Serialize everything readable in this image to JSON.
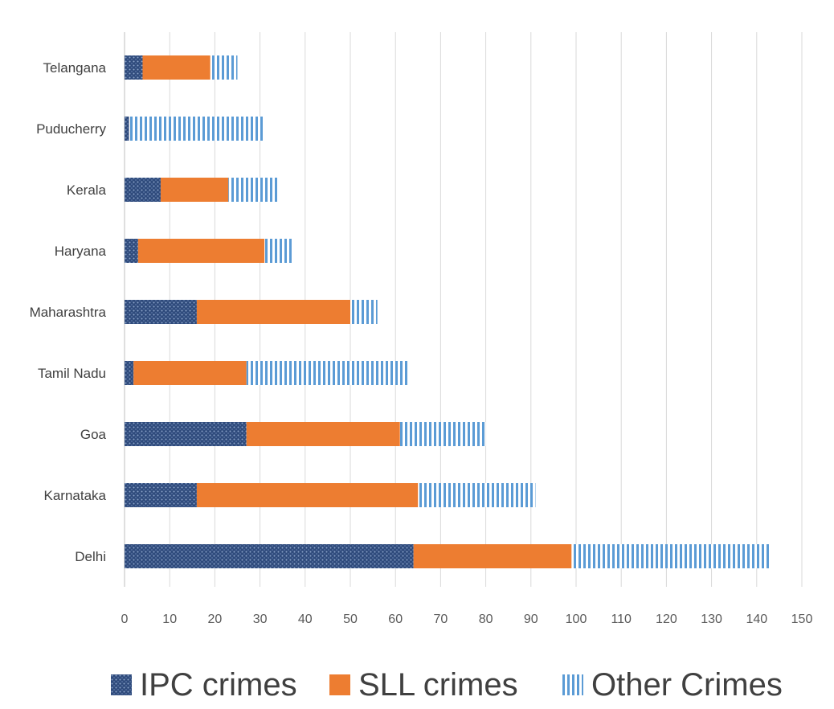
{
  "chart_data": {
    "type": "bar",
    "orientation": "horizontal",
    "stacked": true,
    "title": "",
    "xlabel": "",
    "ylabel": "",
    "categories": [
      "Delhi",
      "Karnataka",
      "Goa",
      "Tamil Nadu",
      "Maharashtra",
      "Haryana",
      "Kerala",
      "Puducherry",
      "Telangana"
    ],
    "series": [
      {
        "name": "IPC crimes",
        "values": [
          64,
          16,
          27,
          2,
          16,
          3,
          8,
          1,
          4
        ],
        "color": "#2f4b7c",
        "pattern": "dots"
      },
      {
        "name": "SLL crimes",
        "values": [
          35,
          49,
          34,
          25,
          34,
          28,
          15,
          0,
          15
        ],
        "color": "#ed7d31",
        "pattern": "solid"
      },
      {
        "name": "Other Crimes",
        "values": [
          44,
          26,
          19,
          36,
          6,
          6,
          11,
          30,
          6
        ],
        "color": "#5b9bd5",
        "pattern": "vertical-stripes"
      }
    ],
    "xlim": [
      0,
      150
    ],
    "x_ticks": [
      "0",
      "10",
      "20",
      "30",
      "40",
      "50",
      "60",
      "70",
      "80",
      "90",
      "100",
      "110",
      "120",
      "130",
      "140",
      "150"
    ],
    "grid": "vertical",
    "legend_position": "bottom"
  }
}
